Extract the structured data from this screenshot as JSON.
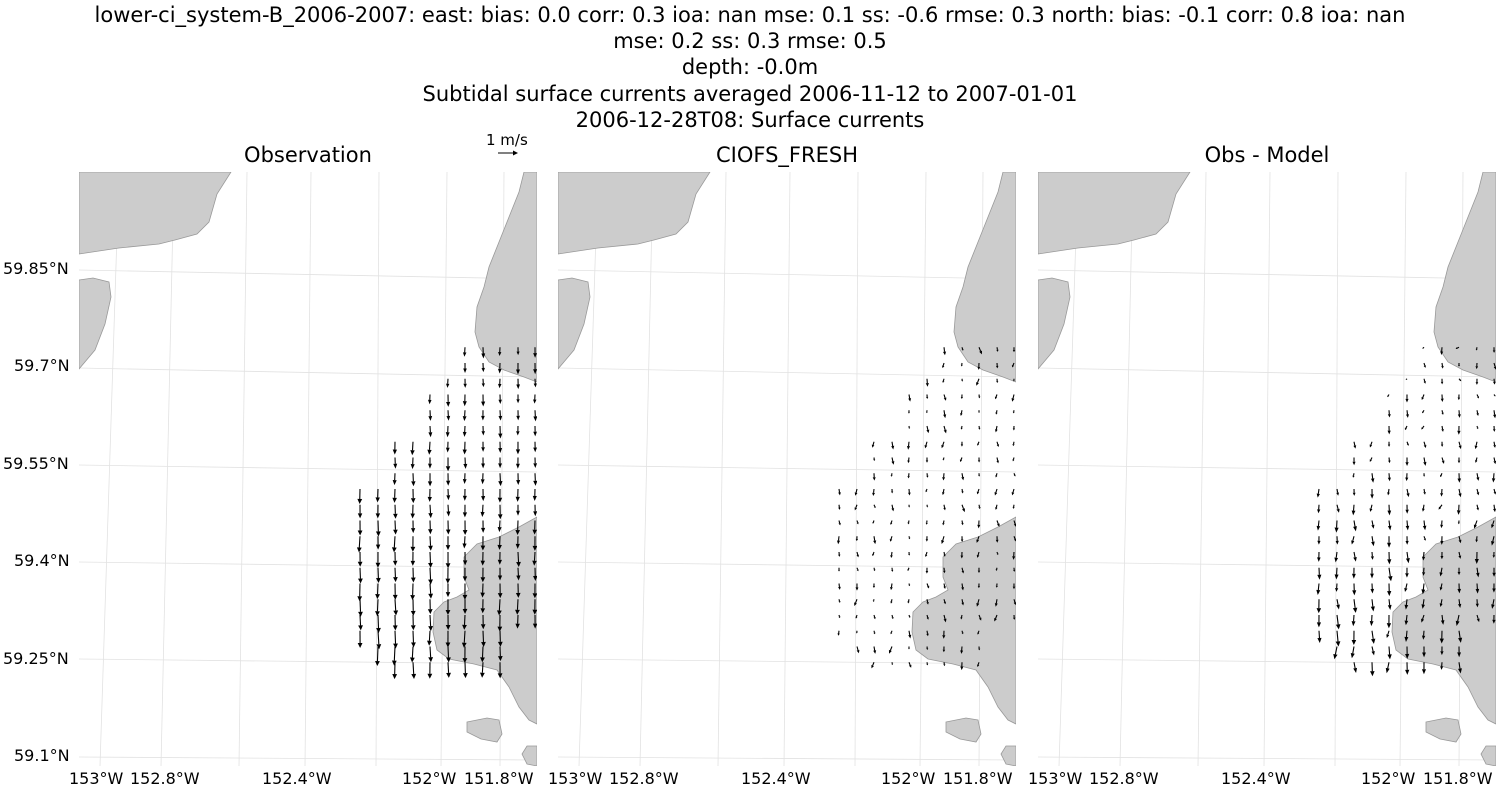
{
  "header": {
    "line1": "lower-ci_system-B_2006-2007: east: bias: 0.0  corr: 0.3  ioa: nan  mse: 0.1  ss: -0.6  rmse: 0.3  north: bias: -0.1  corr: 0.8  ioa: nan",
    "line2": "mse: 0.2  ss: 0.3  rmse: 0.5",
    "line3": "depth: -0.0m",
    "line4": "Subtidal surface currents averaged 2006-11-12 to 2007-01-01",
    "line5": "2006-12-28T08: Surface currents"
  },
  "scale": {
    "label": "1 m/s"
  },
  "panels": [
    {
      "title": "Observation"
    },
    {
      "title": "CIOFS_FRESH"
    },
    {
      "title": "Obs - Model"
    }
  ],
  "lat_ticks": [
    "59.85°N",
    "59.7°N",
    "59.55°N",
    "59.4°N",
    "59.25°N",
    "59.1°N"
  ],
  "lon_ticks": [
    "153°W",
    "152.8°W",
    "152.4°W",
    "152°W",
    "151.8°W"
  ],
  "colors": {
    "land": "#cccccc",
    "coast": "#999999",
    "grid": "#e2e2e2",
    "arrow": "#000000"
  }
}
